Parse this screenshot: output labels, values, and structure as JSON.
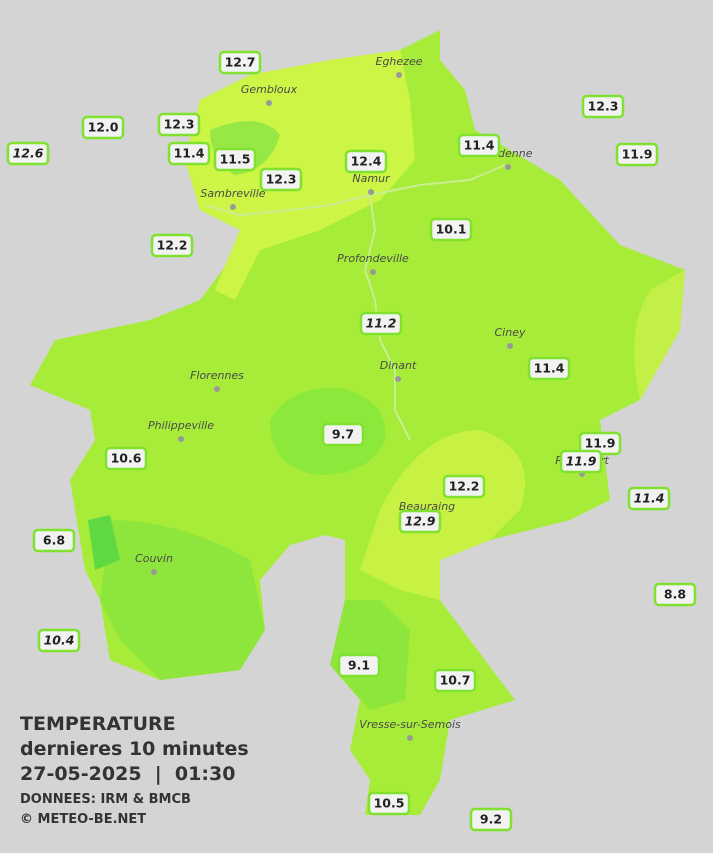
{
  "legend": {
    "title": "TEMPERATURE",
    "subtitle": "dernieres 10 minutes",
    "datetime": "27-05-2025  |  01:30",
    "source": "DONNEES: IRM & BMCB",
    "credit": "© METEO-BE.NET"
  },
  "towns": [
    "Eghezee",
    "Gembloux",
    "Andenne",
    "Namur",
    "Sambreville",
    "Profondeville",
    "Ciney",
    "Florennes",
    "Dinant",
    "Philippeville",
    "Rochefort",
    "Beauraing",
    "Couvin",
    "Vresse-sur-Semois"
  ],
  "stations": [
    {
      "reading": "12.7",
      "italic": false
    },
    {
      "reading": "12.3",
      "italic": false
    },
    {
      "reading": "12.0",
      "italic": false
    },
    {
      "reading": "12.3",
      "italic": false
    },
    {
      "reading": "12.6",
      "italic": true
    },
    {
      "reading": "11.4",
      "italic": false
    },
    {
      "reading": "11.5",
      "italic": false
    },
    {
      "reading": "12.3",
      "italic": false
    },
    {
      "reading": "12.4",
      "italic": false
    },
    {
      "reading": "11.4",
      "italic": false
    },
    {
      "reading": "11.9",
      "italic": false
    },
    {
      "reading": "12.2",
      "italic": false
    },
    {
      "reading": "10.1",
      "italic": false
    },
    {
      "reading": "11.2",
      "italic": true
    },
    {
      "reading": "11.4",
      "italic": false
    },
    {
      "reading": "9.7",
      "italic": false
    },
    {
      "reading": "11.9",
      "italic": false
    },
    {
      "reading": "11.9",
      "italic": true
    },
    {
      "reading": "10.6",
      "italic": false
    },
    {
      "reading": "12.2",
      "italic": false
    },
    {
      "reading": "12.9",
      "italic": true
    },
    {
      "reading": "11.4",
      "italic": true
    },
    {
      "reading": "6.8",
      "italic": false
    },
    {
      "reading": "8.8",
      "italic": false
    },
    {
      "reading": "10.4",
      "italic": true
    },
    {
      "reading": "9.1",
      "italic": false
    },
    {
      "reading": "10.7",
      "italic": false
    },
    {
      "reading": "10.5",
      "italic": false
    },
    {
      "reading": "9.2",
      "italic": false
    }
  ]
}
